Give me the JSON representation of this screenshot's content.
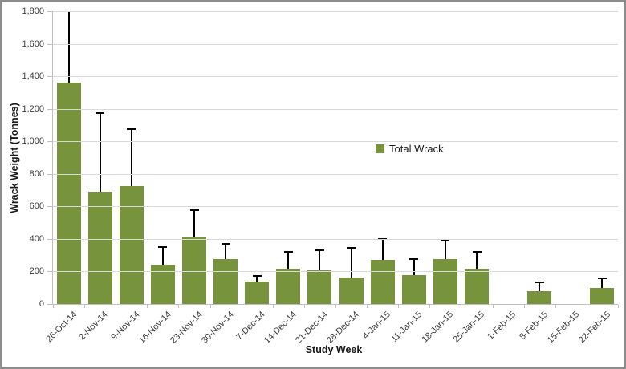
{
  "chart_data": {
    "type": "bar",
    "title": "",
    "xlabel": "Study Week",
    "ylabel": "Wrack Weight (Tonnes)",
    "ylim": [
      0,
      1800
    ],
    "grid": true,
    "legend_position": "inside-center-right",
    "ytick_values": [
      0,
      200,
      400,
      600,
      800,
      1000,
      1200,
      1400,
      1600,
      1800
    ],
    "ytick_labels": [
      "0",
      "200",
      "400",
      "600",
      "800",
      "1,000",
      "1,200",
      "1,400",
      "1,600",
      "1,800"
    ],
    "categories": [
      "26-Oct-14",
      "2-Nov-14",
      "9-Nov-14",
      "16-Nov-14",
      "23-Nov-14",
      "30-Nov-14",
      "7-Dec-14",
      "14-Dec-14",
      "21-Dec-14",
      "28-Dec-14",
      "4-Jan-15",
      "11-Jan-15",
      "18-Jan-15",
      "25-Jan-15",
      "1-Feb-15",
      "8-Feb-15",
      "15-Feb-15",
      "22-Feb-15"
    ],
    "series": [
      {
        "name": "Total Wrack",
        "color": "#77933C",
        "values": [
          1360,
          690,
          725,
          240,
          410,
          275,
          140,
          215,
          205,
          165,
          270,
          180,
          275,
          215,
          0,
          80,
          0,
          100
        ]
      }
    ],
    "error_bars": [
      {
        "low": 620,
        "high": 1800
      },
      {
        "low": 215,
        "high": 1175
      },
      {
        "low": 380,
        "high": 1075
      },
      {
        "low": 135,
        "high": 350
      },
      {
        "low": 245,
        "high": 575
      },
      {
        "low": 180,
        "high": 370
      },
      {
        "low": 110,
        "high": 175
      },
      {
        "low": 115,
        "high": 320
      },
      {
        "low": 85,
        "high": 330
      },
      {
        "low": 0,
        "high": 345
      },
      {
        "low": 150,
        "high": 400
      },
      {
        "low": 90,
        "high": 275
      },
      {
        "low": 150,
        "high": 395
      },
      {
        "low": 115,
        "high": 320
      },
      null,
      {
        "low": 30,
        "high": 135
      },
      null,
      {
        "low": 50,
        "high": 160
      }
    ]
  },
  "style": {
    "bar_color": "#77933C",
    "gridline_color": "#D9D9D9",
    "axis_color": "#BFBFBF",
    "error_color": "#000000",
    "tick_text_color": "#3B3B3B",
    "border_color": "#8C8C8C",
    "background": "#FFFFFF"
  }
}
